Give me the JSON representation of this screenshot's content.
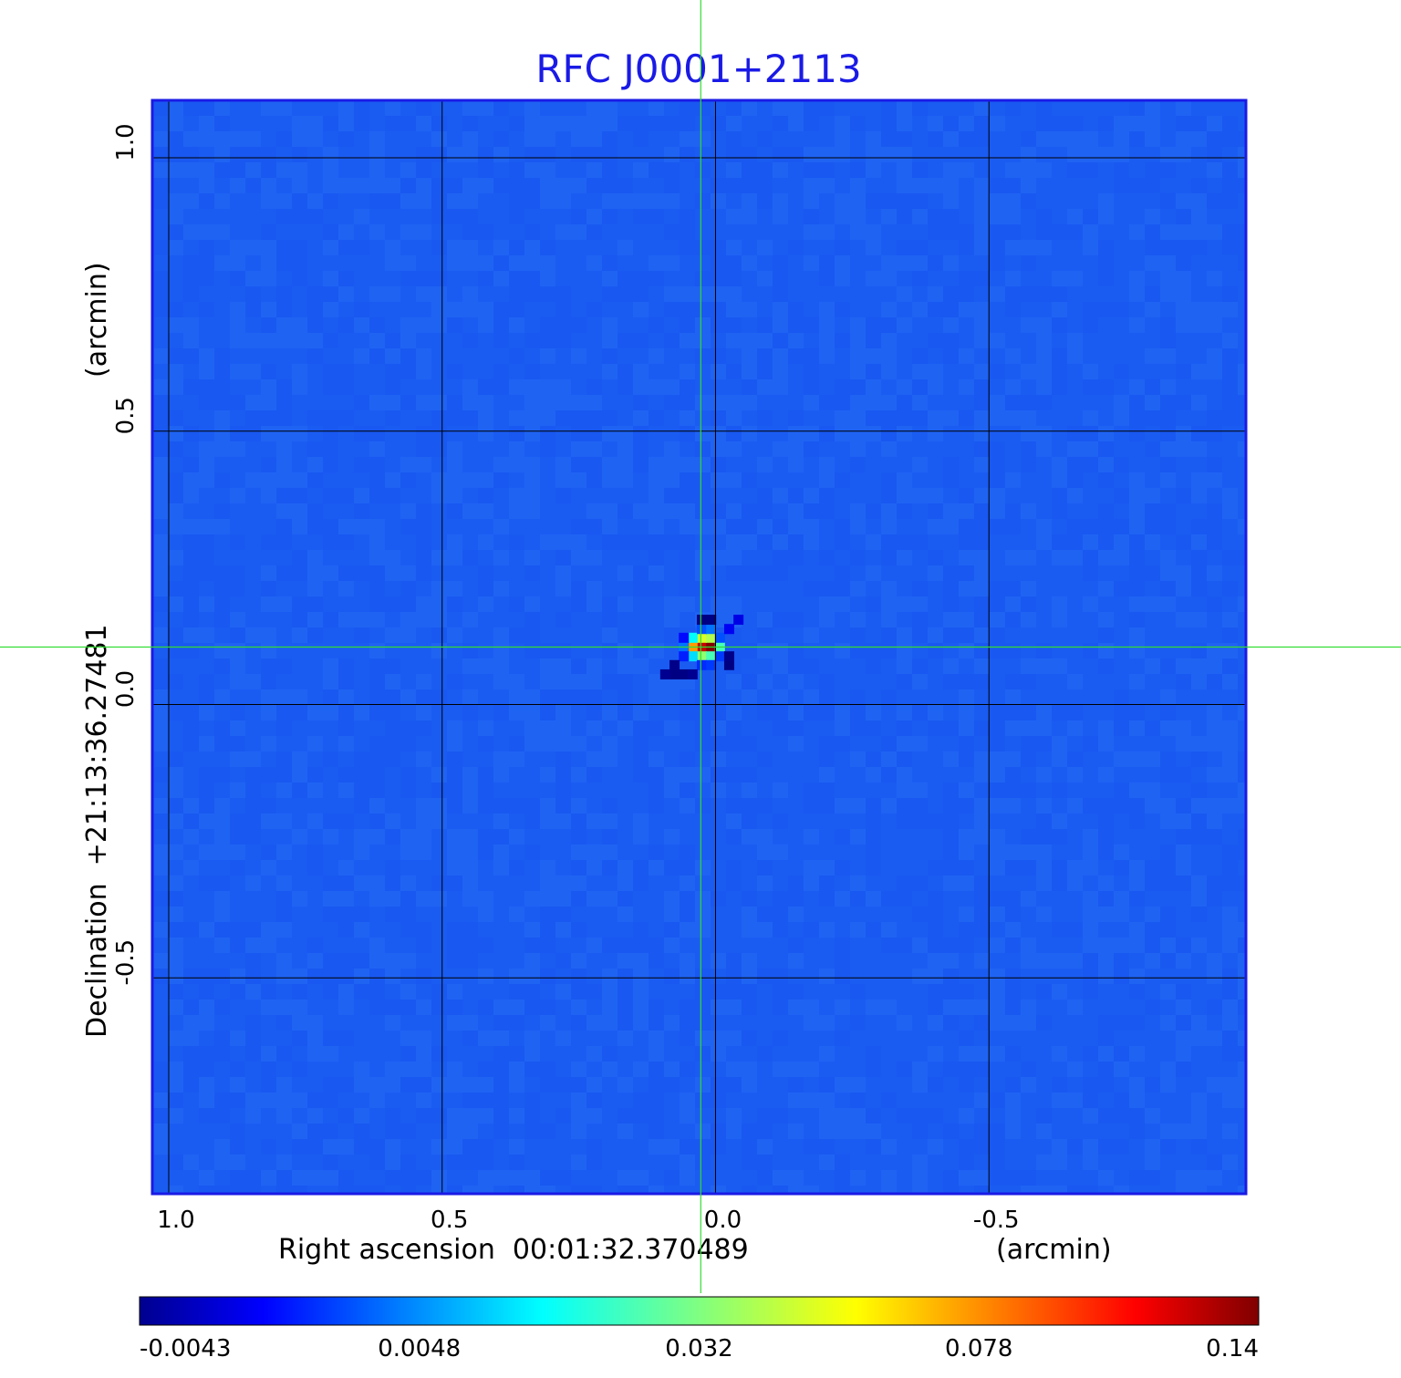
{
  "chart_data": {
    "type": "heatmap",
    "title": "RFC J0001+2113",
    "xlabel": "Right ascension  00:01:32.370489",
    "xunit": "(arcmin)",
    "ylabel": "Declination  +21:13:36.27481",
    "yunit": "(arcmin)",
    "x_ticks": [
      {
        "value": 1.0,
        "label": "1.0"
      },
      {
        "value": 0.5,
        "label": "0.5"
      },
      {
        "value": 0.0,
        "label": "0.0"
      },
      {
        "value": -0.5,
        "label": "-0.5"
      }
    ],
    "y_ticks": [
      {
        "value": 1.0,
        "label": "1.0"
      },
      {
        "value": 0.5,
        "label": "0.5"
      },
      {
        "value": 0.0,
        "label": "0.0"
      },
      {
        "value": -0.5,
        "label": "-0.5"
      }
    ],
    "xlim": [
      1.03,
      -0.97
    ],
    "ylim": [
      -0.895,
      1.105
    ],
    "grid": true,
    "crosshair": {
      "x": 0.027,
      "y": 0.105
    },
    "colorbar": {
      "ticks": [
        "-0.0043",
        "0.0048",
        "0.032",
        "0.078",
        "0.14"
      ],
      "range": [
        -0.0043,
        0.14
      ],
      "colormap": "jet"
    },
    "background_level": 0.001,
    "source_pixels": [
      {
        "x": 0.025,
        "y": 0.105,
        "value": 0.13
      },
      {
        "x": 0.008,
        "y": 0.105,
        "value": 0.14
      },
      {
        "x": 0.042,
        "y": 0.105,
        "value": 0.1
      },
      {
        "x": 0.025,
        "y": 0.122,
        "value": 0.08
      },
      {
        "x": 0.008,
        "y": 0.122,
        "value": 0.075
      },
      {
        "x": 0.025,
        "y": 0.088,
        "value": 0.07
      },
      {
        "x": 0.008,
        "y": 0.088,
        "value": 0.06
      },
      {
        "x": 0.042,
        "y": 0.122,
        "value": 0.05
      },
      {
        "x": 0.042,
        "y": 0.088,
        "value": 0.045
      },
      {
        "x": -0.008,
        "y": 0.105,
        "value": 0.06
      },
      {
        "x": 0.058,
        "y": 0.105,
        "value": 0.03
      },
      {
        "x": 0.025,
        "y": 0.138,
        "value": 0.025
      },
      {
        "x": 0.008,
        "y": 0.138,
        "value": 0.03
      },
      {
        "x": 0.025,
        "y": 0.072,
        "value": 0.02
      },
      {
        "x": 0.008,
        "y": 0.072,
        "value": 0.022
      },
      {
        "x": -0.008,
        "y": 0.122,
        "value": 0.025
      },
      {
        "x": -0.008,
        "y": 0.088,
        "value": 0.022
      },
      {
        "x": 0.058,
        "y": 0.122,
        "value": 0.015
      },
      {
        "x": 0.058,
        "y": 0.088,
        "value": 0.018
      },
      {
        "x": -0.025,
        "y": 0.138,
        "value": 0.012
      },
      {
        "x": -0.042,
        "y": 0.155,
        "value": 0.01
      },
      {
        "x": 0.025,
        "y": 0.155,
        "value": -0.004
      },
      {
        "x": 0.008,
        "y": 0.155,
        "value": -0.0035
      },
      {
        "x": 0.075,
        "y": 0.055,
        "value": -0.004
      },
      {
        "x": 0.058,
        "y": 0.055,
        "value": -0.0035
      },
      {
        "x": 0.075,
        "y": 0.072,
        "value": -0.003
      },
      {
        "x": -0.025,
        "y": 0.072,
        "value": -0.004
      },
      {
        "x": -0.025,
        "y": 0.088,
        "value": -0.003
      },
      {
        "x": 0.092,
        "y": 0.055,
        "value": -0.002
      },
      {
        "x": 0.042,
        "y": 0.055,
        "value": -0.002
      }
    ]
  }
}
